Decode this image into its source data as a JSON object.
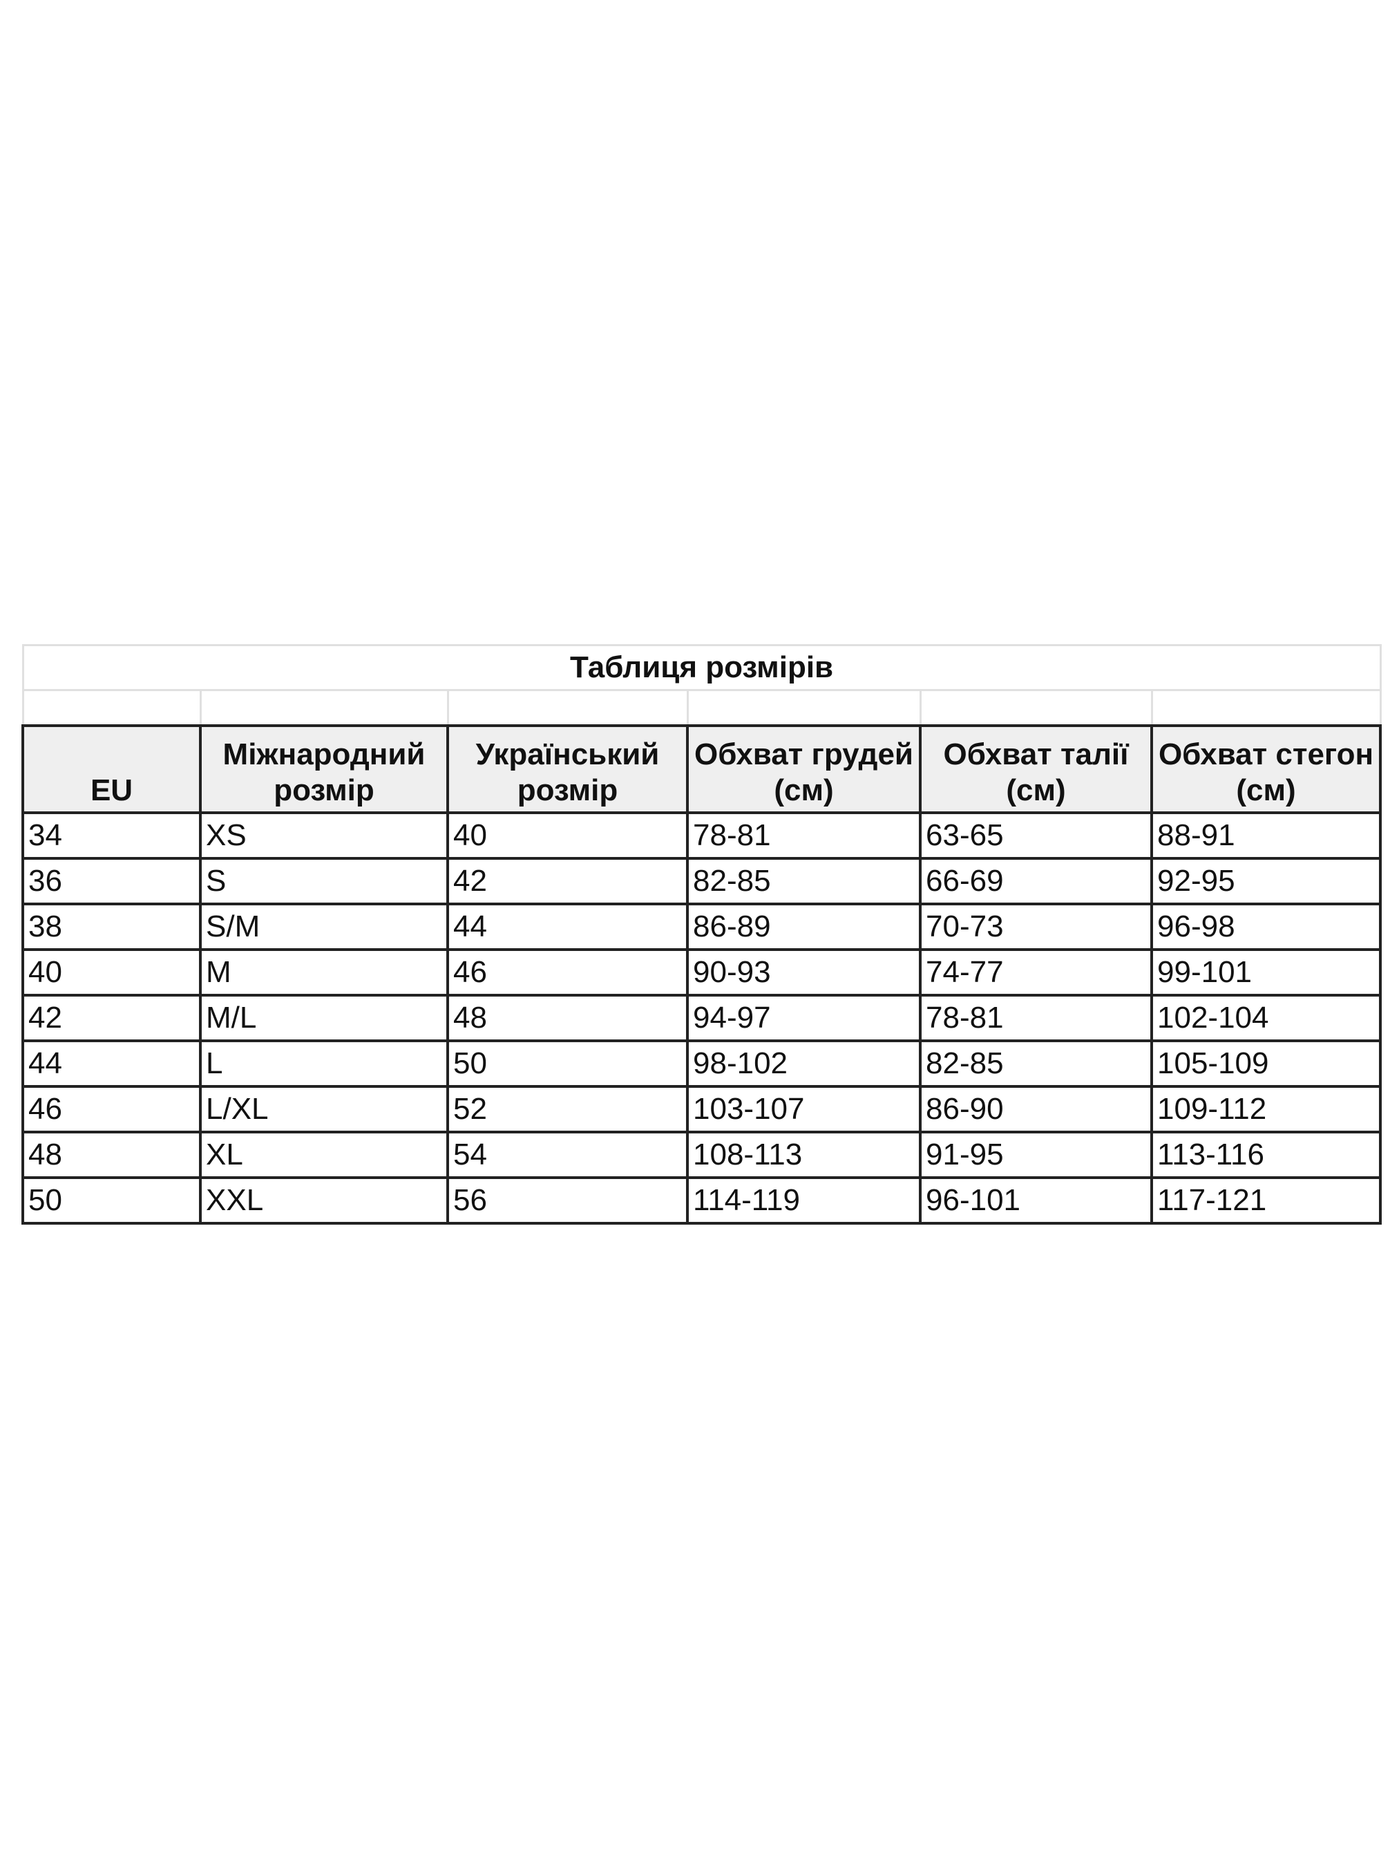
{
  "title": "Таблиця розмірів",
  "headers": [
    "EU",
    "Міжнародний розмір",
    "Український розмір",
    "Обхват грудей (см)",
    "Обхват талії (см)",
    "Обхват стегон (см)"
  ],
  "rows": [
    [
      "34",
      "XS",
      "40",
      "78-81",
      "63-65",
      "88-91"
    ],
    [
      "36",
      "S",
      "42",
      "82-85",
      "66-69",
      "92-95"
    ],
    [
      "38",
      "S/M",
      "44",
      "86-89",
      "70-73",
      "96-98"
    ],
    [
      "40",
      "M",
      "46",
      "90-93",
      "74-77",
      "99-101"
    ],
    [
      "42",
      "M/L",
      "48",
      "94-97",
      "78-81",
      "102-104"
    ],
    [
      "44",
      "L",
      "50",
      "98-102",
      "82-85",
      "105-109"
    ],
    [
      "46",
      "L/XL",
      "52",
      "103-107",
      "86-90",
      "109-112"
    ],
    [
      "48",
      "XL",
      "54",
      "108-113",
      "91-95",
      "113-116"
    ],
    [
      "50",
      "XXL",
      "56",
      "114-119",
      "96-101",
      "117-121"
    ]
  ],
  "colors": {
    "header_bg": "#efefef",
    "border": "#222222",
    "light_border": "#e0e0e0"
  }
}
